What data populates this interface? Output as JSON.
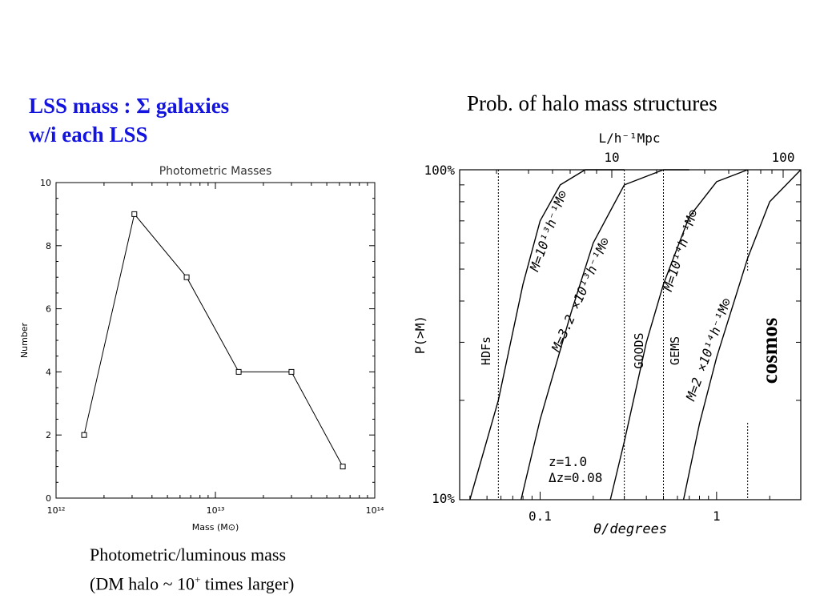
{
  "left_heading": {
    "line1": "LSS mass :  Σ galaxies",
    "line2": "w/i each LSS"
  },
  "right_heading": "Prob. of halo mass structures",
  "caption": {
    "line1": "Photometric/luminous mass",
    "line2_pre": "(DM halo ~ 10",
    "line2_sup": "+",
    "line2_post": " times larger)"
  },
  "colors": {
    "heading": "#1414e0",
    "ink": "#000000"
  },
  "chart_data": [
    {
      "type": "line",
      "title": "Photometric Masses",
      "xlabel": "Mass (M⊙)",
      "ylabel": "Number",
      "x_scale": "log",
      "xlim": [
        1000000000000.0,
        100000000000000.0
      ],
      "ylim": [
        0,
        10
      ],
      "x_tick_labels": [
        "10¹²",
        "10¹³",
        "10¹⁴"
      ],
      "y_tick_labels": [
        "0",
        "2",
        "4",
        "6",
        "8",
        "10"
      ],
      "marker": "open-square",
      "series": [
        {
          "x": [
            1500000000000.0,
            3100000000000.0,
            6600000000000.0,
            14000000000000.0,
            30000000000000.0,
            63000000000000.0
          ],
          "y": [
            2,
            9,
            7,
            4,
            4,
            1
          ]
        }
      ]
    },
    {
      "type": "line",
      "title": "",
      "xlabel": "θ/degrees",
      "ylabel": "P(>M)",
      "x2label": "L/h⁻¹Mpc",
      "x_scale": "log",
      "y_scale": "log",
      "xlim": [
        0.035,
        3.0
      ],
      "ylim": [
        10,
        100
      ],
      "x_tick_labels": [
        "0.1",
        "1"
      ],
      "x2_tick_labels": [
        "10",
        "100"
      ],
      "y_tick_labels": [
        "10%",
        "100%"
      ],
      "annotation_lines": [
        "z=1.0",
        "Δz=0.08"
      ],
      "vertical_lines": [
        {
          "label": "HDFs",
          "theta": 0.058
        },
        {
          "label": "GOODS",
          "theta": 0.3
        },
        {
          "label": "GEMS",
          "theta": 0.5
        },
        {
          "label": "cosmos",
          "theta": 1.5
        }
      ],
      "series": [
        {
          "name": "M=10¹³h⁻¹M⊙",
          "x": [
            0.04,
            0.058,
            0.08,
            0.1,
            0.13,
            0.18,
            0.25,
            0.3
          ],
          "y": [
            10,
            20,
            45,
            70,
            90,
            100,
            100,
            100
          ]
        },
        {
          "name": "M=3.2 ×10¹³h⁻¹M⊙",
          "x": [
            0.078,
            0.1,
            0.15,
            0.2,
            0.3,
            0.5,
            0.7
          ],
          "y": [
            10,
            17.5,
            37,
            60,
            90,
            100,
            100
          ]
        },
        {
          "name": "M=10¹⁴h⁻¹M⊙",
          "x": [
            0.25,
            0.3,
            0.4,
            0.5,
            0.7,
            1.0,
            1.5
          ],
          "y": [
            10,
            15,
            30,
            45,
            72,
            92,
            100
          ]
        },
        {
          "name": "M=2 ×10¹⁴h⁻¹M⊙",
          "x": [
            0.65,
            0.8,
            1.0,
            1.5,
            2.0,
            3.0
          ],
          "y": [
            10,
            17,
            27,
            54,
            80,
            100
          ]
        }
      ]
    }
  ]
}
